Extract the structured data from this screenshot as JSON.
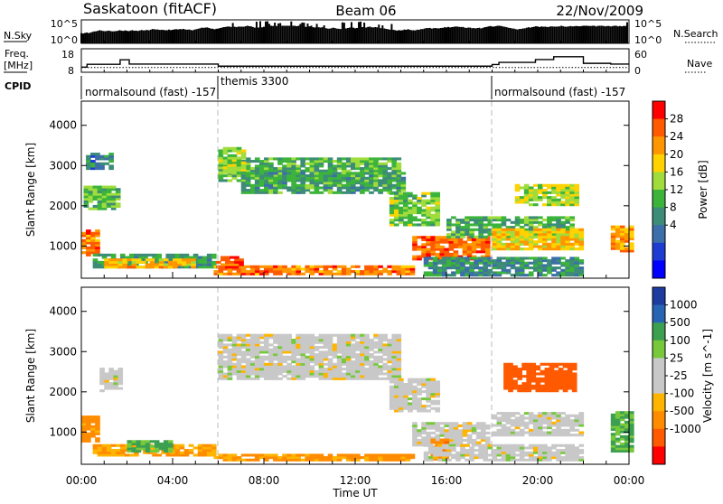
{
  "header": {
    "station": "Saskatoon (fitACF)",
    "beam": "Beam 06",
    "date": "22/Nov/2009"
  },
  "status_panels": {
    "nsky_label": "N.Sky",
    "nsky_ticks": [
      "10^5",
      "10^0"
    ],
    "nsearch_label": "N.Search",
    "nsearch_ticks": [
      "10^5",
      "10^0"
    ],
    "freq_label": "Freq.",
    "freq_unit": "[MHz]",
    "freq_ticks": [
      "18",
      "8"
    ],
    "nave_label": "Nave",
    "nave_ticks": [
      "60",
      "0"
    ],
    "cpid_label": "CPID",
    "cpid_segments": [
      {
        "name": "normalsound (fast) -157",
        "start_ut": "00:00"
      },
      {
        "name": "themis 3300",
        "start_ut": "06:00"
      },
      {
        "name": "normalsound (fast) -157",
        "start_ut": "18:00"
      }
    ],
    "freq_steps": [
      {
        "t": 0.0,
        "v": 10.2
      },
      {
        "t": 0.25,
        "v": 11.4
      },
      {
        "t": 1.7,
        "v": 13.3
      },
      {
        "t": 2.1,
        "v": 11.5
      },
      {
        "t": 6.0,
        "v": 10.6
      },
      {
        "t": 18.0,
        "v": 11.3
      },
      {
        "t": 18.3,
        "v": 12.2
      },
      {
        "t": 19.9,
        "v": 13.4
      },
      {
        "t": 20.7,
        "v": 14.6
      },
      {
        "t": 22.0,
        "v": 11.8
      },
      {
        "t": 23.2,
        "v": 11.5
      }
    ],
    "nave_level": 12
  },
  "chart_data": [
    {
      "type": "heatmap",
      "parameter": "power",
      "ylabel": "Slant Range [km]",
      "ylim": [
        200,
        4600
      ],
      "yticks": [
        1000,
        2000,
        3000,
        4000
      ],
      "colorbar_label": "Power [dB]",
      "colorbar_ticks": [
        28,
        24,
        20,
        16,
        12,
        8,
        4
      ],
      "colorbar_colors": [
        "#ff0000",
        "#ff5a00",
        "#ff9600",
        "#ffd200",
        "#a0dc3c",
        "#3cb43c",
        "#3c8c78",
        "#3c6eaa",
        "#1e3cd2",
        "#0000ff"
      ],
      "echo_regions": [
        {
          "t0": 0.0,
          "t1": 0.8,
          "r0": 750,
          "r1": 1400,
          "db": 26
        },
        {
          "t0": 0.1,
          "t1": 1.6,
          "r0": 1900,
          "r1": 2500,
          "db": 13
        },
        {
          "t0": 0.2,
          "t1": 1.4,
          "r0": 2900,
          "r1": 3300,
          "db": 6
        },
        {
          "t0": 0.5,
          "t1": 5.8,
          "r0": 450,
          "r1": 800,
          "db": 9
        },
        {
          "t0": 1.0,
          "t1": 5.0,
          "r0": 450,
          "r1": 650,
          "db": 22
        },
        {
          "t0": 5.8,
          "t1": 14.5,
          "r0": 280,
          "r1": 500,
          "db": 26
        },
        {
          "t0": 5.9,
          "t1": 7.0,
          "r0": 450,
          "r1": 700,
          "db": 28
        },
        {
          "t0": 6.0,
          "t1": 13.8,
          "r0": 2600,
          "r1": 3200,
          "db": 12
        },
        {
          "t0": 6.0,
          "t1": 7.2,
          "r0": 2800,
          "r1": 3450,
          "db": 16
        },
        {
          "t0": 7.0,
          "t1": 14.0,
          "r0": 2300,
          "r1": 2800,
          "db": 10
        },
        {
          "t0": 13.5,
          "t1": 15.5,
          "r0": 1500,
          "r1": 2300,
          "db": 14
        },
        {
          "t0": 14.5,
          "t1": 17.8,
          "r0": 650,
          "r1": 1200,
          "db": 27
        },
        {
          "t0": 16.0,
          "t1": 21.5,
          "r0": 1200,
          "r1": 1700,
          "db": 11
        },
        {
          "t0": 18.0,
          "t1": 21.9,
          "r0": 900,
          "r1": 1400,
          "db": 20
        },
        {
          "t0": 19.0,
          "t1": 21.6,
          "r0": 2000,
          "r1": 2500,
          "db": 17
        },
        {
          "t0": 15.0,
          "t1": 21.9,
          "r0": 250,
          "r1": 700,
          "db": 8
        },
        {
          "t0": 23.2,
          "t1": 24.0,
          "r0": 850,
          "r1": 1500,
          "db": 24
        }
      ]
    },
    {
      "type": "heatmap",
      "parameter": "velocity",
      "xlabel": "Time UT",
      "ylabel": "Slant Range [km]",
      "xlim": [
        0,
        24
      ],
      "xticks": [
        "00:00",
        "04:00",
        "08:00",
        "12:00",
        "16:00",
        "20:00",
        "00:00"
      ],
      "ylim": [
        200,
        4600
      ],
      "yticks": [
        1000,
        2000,
        3000,
        4000
      ],
      "colorbar_label": "Velocity [m s^-1]",
      "colorbar_ticks": [
        1000,
        500,
        100,
        25,
        -25,
        -100,
        -500,
        -1000
      ],
      "colorbar_colors": [
        "#1e3ca0",
        "#2864b4",
        "#3ca050",
        "#78c83c",
        "#c8c8c8",
        "#c8c8c8",
        "#ffb400",
        "#ff8c00",
        "#ff5a00",
        "#ff0000"
      ],
      "echo_regions": [
        {
          "t0": 0.0,
          "t1": 0.8,
          "r0": 750,
          "r1": 1400,
          "v": -80
        },
        {
          "t0": 0.5,
          "t1": 5.8,
          "r0": 400,
          "r1": 700,
          "v": -60
        },
        {
          "t0": 0.8,
          "t1": 1.6,
          "r0": 2000,
          "r1": 2600,
          "v": 0
        },
        {
          "t0": 2.0,
          "t1": 4.0,
          "r0": 500,
          "r1": 800,
          "v": 60
        },
        {
          "t0": 5.8,
          "t1": 14.5,
          "r0": 280,
          "r1": 450,
          "v": -70
        },
        {
          "t0": 6.0,
          "t1": 13.8,
          "r0": 2300,
          "r1": 3400,
          "v": 0
        },
        {
          "t0": 13.5,
          "t1": 15.5,
          "r0": 1500,
          "r1": 2300,
          "v": 0
        },
        {
          "t0": 14.5,
          "t1": 17.8,
          "r0": 650,
          "r1": 1200,
          "v": 0
        },
        {
          "t0": 15.3,
          "t1": 16.0,
          "r0": 300,
          "r1": 800,
          "v": -200
        },
        {
          "t0": 18.0,
          "t1": 21.9,
          "r0": 900,
          "r1": 1500,
          "v": 0
        },
        {
          "t0": 18.5,
          "t1": 21.6,
          "r0": 2000,
          "r1": 2700,
          "v": -600
        },
        {
          "t0": 15.0,
          "t1": 21.9,
          "r0": 280,
          "r1": 700,
          "v": 0
        },
        {
          "t0": 23.2,
          "t1": 24.0,
          "r0": 500,
          "r1": 1500,
          "v": 60
        }
      ]
    }
  ]
}
